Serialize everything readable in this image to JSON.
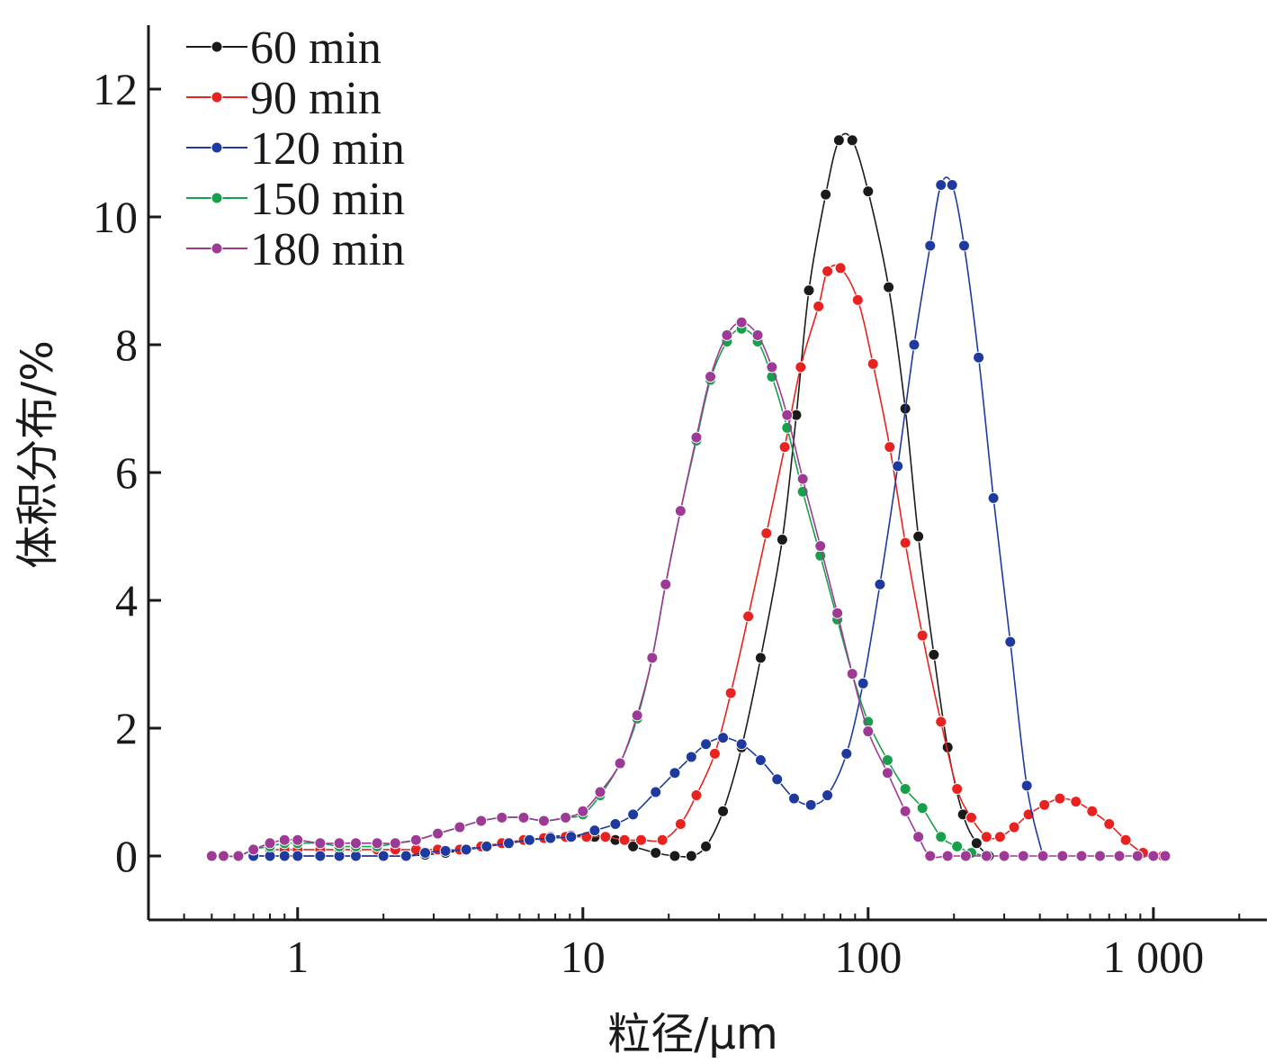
{
  "chart_data": {
    "type": "line",
    "x_scale": "log",
    "xlabel": "粒径/μm",
    "ylabel": "体积分布/%",
    "xlim": [
      0.3,
      2500
    ],
    "ylim": [
      -1,
      13
    ],
    "x_ticks": [
      {
        "value": 1,
        "label": "1"
      },
      {
        "value": 10,
        "label": "10"
      },
      {
        "value": 100,
        "label": "100"
      },
      {
        "value": 1000,
        "label": "1 000"
      }
    ],
    "y_ticks": [
      {
        "value": 0,
        "label": "0"
      },
      {
        "value": 2,
        "label": "2"
      },
      {
        "value": 4,
        "label": "4"
      },
      {
        "value": 6,
        "label": "6"
      },
      {
        "value": 8,
        "label": "8"
      },
      {
        "value": 10,
        "label": "10"
      },
      {
        "value": 12,
        "label": "12"
      }
    ],
    "legend_position": "top-left",
    "series": [
      {
        "name": "60 min",
        "color": "#1a1a1a",
        "points": [
          [
            0.7,
            0
          ],
          [
            0.8,
            0
          ],
          [
            0.9,
            0
          ],
          [
            1.0,
            0
          ],
          [
            1.2,
            0
          ],
          [
            1.4,
            0
          ],
          [
            1.6,
            0
          ],
          [
            2.0,
            0
          ],
          [
            2.4,
            0
          ],
          [
            2.8,
            0.02
          ],
          [
            3.3,
            0.05
          ],
          [
            3.9,
            0.1
          ],
          [
            4.6,
            0.15
          ],
          [
            5.5,
            0.2
          ],
          [
            6.5,
            0.25
          ],
          [
            7.7,
            0.3
          ],
          [
            9.1,
            0.32
          ],
          [
            11,
            0.3
          ],
          [
            13,
            0.25
          ],
          [
            15,
            0.15
          ],
          [
            18,
            0.05
          ],
          [
            21,
            0
          ],
          [
            24,
            0
          ],
          [
            27,
            0.15
          ],
          [
            31,
            0.7
          ],
          [
            36,
            1.7
          ],
          [
            42,
            3.1
          ],
          [
            50,
            4.95
          ],
          [
            56,
            6.9
          ],
          [
            62,
            8.85
          ],
          [
            71,
            10.35
          ],
          [
            79,
            11.2
          ],
          [
            88,
            11.2
          ],
          [
            100,
            10.4
          ],
          [
            118,
            8.9
          ],
          [
            135,
            7
          ],
          [
            150,
            5
          ],
          [
            170,
            3.15
          ],
          [
            190,
            1.7
          ],
          [
            215,
            0.65
          ],
          [
            240,
            0.2
          ],
          [
            265,
            0
          ]
        ]
      },
      {
        "name": "90 min",
        "color": "#e8221f",
        "points": [
          [
            0.8,
            0.1
          ],
          [
            0.9,
            0.1
          ],
          [
            1.0,
            0.1
          ],
          [
            1.2,
            0.1
          ],
          [
            1.4,
            0.1
          ],
          [
            1.6,
            0.1
          ],
          [
            1.9,
            0.1
          ],
          [
            2.2,
            0.1
          ],
          [
            2.6,
            0.1
          ],
          [
            3.1,
            0.1
          ],
          [
            3.7,
            0.1
          ],
          [
            4.4,
            0.15
          ],
          [
            5.2,
            0.2
          ],
          [
            6.2,
            0.25
          ],
          [
            7.3,
            0.28
          ],
          [
            8.7,
            0.3
          ],
          [
            10.3,
            0.3
          ],
          [
            12,
            0.3
          ],
          [
            14,
            0.25
          ],
          [
            16,
            0.25
          ],
          [
            19,
            0.25
          ],
          [
            22,
            0.5
          ],
          [
            25,
            0.95
          ],
          [
            29,
            1.6
          ],
          [
            33,
            2.55
          ],
          [
            38,
            3.75
          ],
          [
            44,
            5.05
          ],
          [
            51,
            6.4
          ],
          [
            58,
            7.65
          ],
          [
            67,
            8.6
          ],
          [
            72,
            9.15
          ],
          [
            80,
            9.2
          ],
          [
            92,
            8.7
          ],
          [
            104,
            7.7
          ],
          [
            119,
            6.4
          ],
          [
            135,
            4.9
          ],
          [
            155,
            3.45
          ],
          [
            180,
            2.1
          ],
          [
            205,
            1.05
          ],
          [
            230,
            0.6
          ],
          [
            260,
            0.3
          ],
          [
            290,
            0.3
          ],
          [
            325,
            0.45
          ],
          [
            365,
            0.65
          ],
          [
            415,
            0.8
          ],
          [
            470,
            0.9
          ],
          [
            535,
            0.85
          ],
          [
            610,
            0.7
          ],
          [
            700,
            0.5
          ],
          [
            800,
            0.25
          ],
          [
            920,
            0.05
          ],
          [
            1080,
            0
          ]
        ]
      },
      {
        "name": "120 min",
        "color": "#1f3a9e",
        "points": [
          [
            0.7,
            0
          ],
          [
            0.8,
            0
          ],
          [
            0.9,
            0
          ],
          [
            1.0,
            0
          ],
          [
            1.2,
            0
          ],
          [
            1.4,
            0
          ],
          [
            1.6,
            0
          ],
          [
            2.0,
            0
          ],
          [
            2.4,
            0
          ],
          [
            2.8,
            0.05
          ],
          [
            3.3,
            0.08
          ],
          [
            3.9,
            0.1
          ],
          [
            4.6,
            0.15
          ],
          [
            5.5,
            0.2
          ],
          [
            6.5,
            0.25
          ],
          [
            7.7,
            0.28
          ],
          [
            9.1,
            0.3
          ],
          [
            11,
            0.4
          ],
          [
            13,
            0.5
          ],
          [
            15,
            0.65
          ],
          [
            18,
            1
          ],
          [
            21,
            1.3
          ],
          [
            24,
            1.55
          ],
          [
            27,
            1.75
          ],
          [
            31,
            1.85
          ],
          [
            36,
            1.75
          ],
          [
            42,
            1.5
          ],
          [
            48,
            1.2
          ],
          [
            55,
            0.9
          ],
          [
            63,
            0.8
          ],
          [
            72,
            0.95
          ],
          [
            84,
            1.6
          ],
          [
            96,
            2.7
          ],
          [
            110,
            4.25
          ],
          [
            127,
            6.1
          ],
          [
            145,
            8
          ],
          [
            165,
            9.55
          ],
          [
            180,
            10.5
          ],
          [
            197,
            10.5
          ],
          [
            217,
            9.55
          ],
          [
            244,
            7.8
          ],
          [
            275,
            5.6
          ],
          [
            315,
            3.35
          ],
          [
            360,
            1.1
          ],
          [
            410,
            0
          ]
        ]
      },
      {
        "name": "150 min",
        "color": "#17a04a",
        "points": [
          [
            0.5,
            0
          ],
          [
            0.55,
            0
          ],
          [
            0.62,
            0
          ],
          [
            0.7,
            0.1
          ],
          [
            0.8,
            0.15
          ],
          [
            0.9,
            0.2
          ],
          [
            1.0,
            0.2
          ],
          [
            1.2,
            0.2
          ],
          [
            1.4,
            0.15
          ],
          [
            1.6,
            0.15
          ],
          [
            1.9,
            0.15
          ],
          [
            2.2,
            0.2
          ],
          [
            2.6,
            0.25
          ],
          [
            3.1,
            0.35
          ],
          [
            3.7,
            0.45
          ],
          [
            4.4,
            0.55
          ],
          [
            5.2,
            0.6
          ],
          [
            6.2,
            0.6
          ],
          [
            7.3,
            0.55
          ],
          [
            8.7,
            0.6
          ],
          [
            10,
            0.65
          ],
          [
            11.5,
            0.95
          ],
          [
            13.5,
            1.45
          ],
          [
            15.5,
            2.15
          ],
          [
            17.5,
            3.1
          ],
          [
            19.5,
            4.25
          ],
          [
            22,
            5.4
          ],
          [
            25,
            6.5
          ],
          [
            28,
            7.45
          ],
          [
            32,
            8.05
          ],
          [
            36,
            8.25
          ],
          [
            41,
            8.05
          ],
          [
            46,
            7.5
          ],
          [
            52,
            6.7
          ],
          [
            59,
            5.7
          ],
          [
            68,
            4.7
          ],
          [
            78,
            3.7
          ],
          [
            88,
            2.85
          ],
          [
            100,
            2.1
          ],
          [
            117,
            1.5
          ],
          [
            135,
            1.05
          ],
          [
            155,
            0.75
          ],
          [
            180,
            0.3
          ],
          [
            205,
            0.15
          ],
          [
            230,
            0.05
          ],
          [
            260,
            0
          ]
        ]
      },
      {
        "name": "180 min",
        "color": "#9c3a96",
        "points": [
          [
            0.5,
            0
          ],
          [
            0.55,
            0
          ],
          [
            0.62,
            0
          ],
          [
            0.7,
            0.1
          ],
          [
            0.8,
            0.2
          ],
          [
            0.9,
            0.25
          ],
          [
            1.0,
            0.25
          ],
          [
            1.2,
            0.2
          ],
          [
            1.4,
            0.2
          ],
          [
            1.6,
            0.2
          ],
          [
            1.9,
            0.2
          ],
          [
            2.2,
            0.2
          ],
          [
            2.6,
            0.25
          ],
          [
            3.1,
            0.35
          ],
          [
            3.7,
            0.45
          ],
          [
            4.4,
            0.55
          ],
          [
            5.2,
            0.6
          ],
          [
            6.2,
            0.6
          ],
          [
            7.3,
            0.55
          ],
          [
            8.7,
            0.6
          ],
          [
            10,
            0.7
          ],
          [
            11.5,
            1
          ],
          [
            13.5,
            1.45
          ],
          [
            15.5,
            2.2
          ],
          [
            17.5,
            3.1
          ],
          [
            19.5,
            4.25
          ],
          [
            22,
            5.4
          ],
          [
            25,
            6.55
          ],
          [
            28,
            7.5
          ],
          [
            32,
            8.15
          ],
          [
            36,
            8.35
          ],
          [
            41,
            8.15
          ],
          [
            46,
            7.65
          ],
          [
            52,
            6.9
          ],
          [
            59,
            5.9
          ],
          [
            68,
            4.85
          ],
          [
            78,
            3.8
          ],
          [
            88,
            2.85
          ],
          [
            100,
            1.95
          ],
          [
            117,
            1.3
          ],
          [
            135,
            0.7
          ],
          [
            150,
            0.3
          ],
          [
            165,
            0
          ],
          [
            190,
            0
          ],
          [
            220,
            0
          ],
          [
            260,
            0
          ],
          [
            300,
            0
          ],
          [
            350,
            0
          ],
          [
            410,
            0
          ],
          [
            480,
            0
          ],
          [
            560,
            0
          ],
          [
            650,
            0
          ],
          [
            760,
            0
          ],
          [
            880,
            0
          ],
          [
            1000,
            0
          ],
          [
            1100,
            0
          ]
        ]
      }
    ]
  }
}
